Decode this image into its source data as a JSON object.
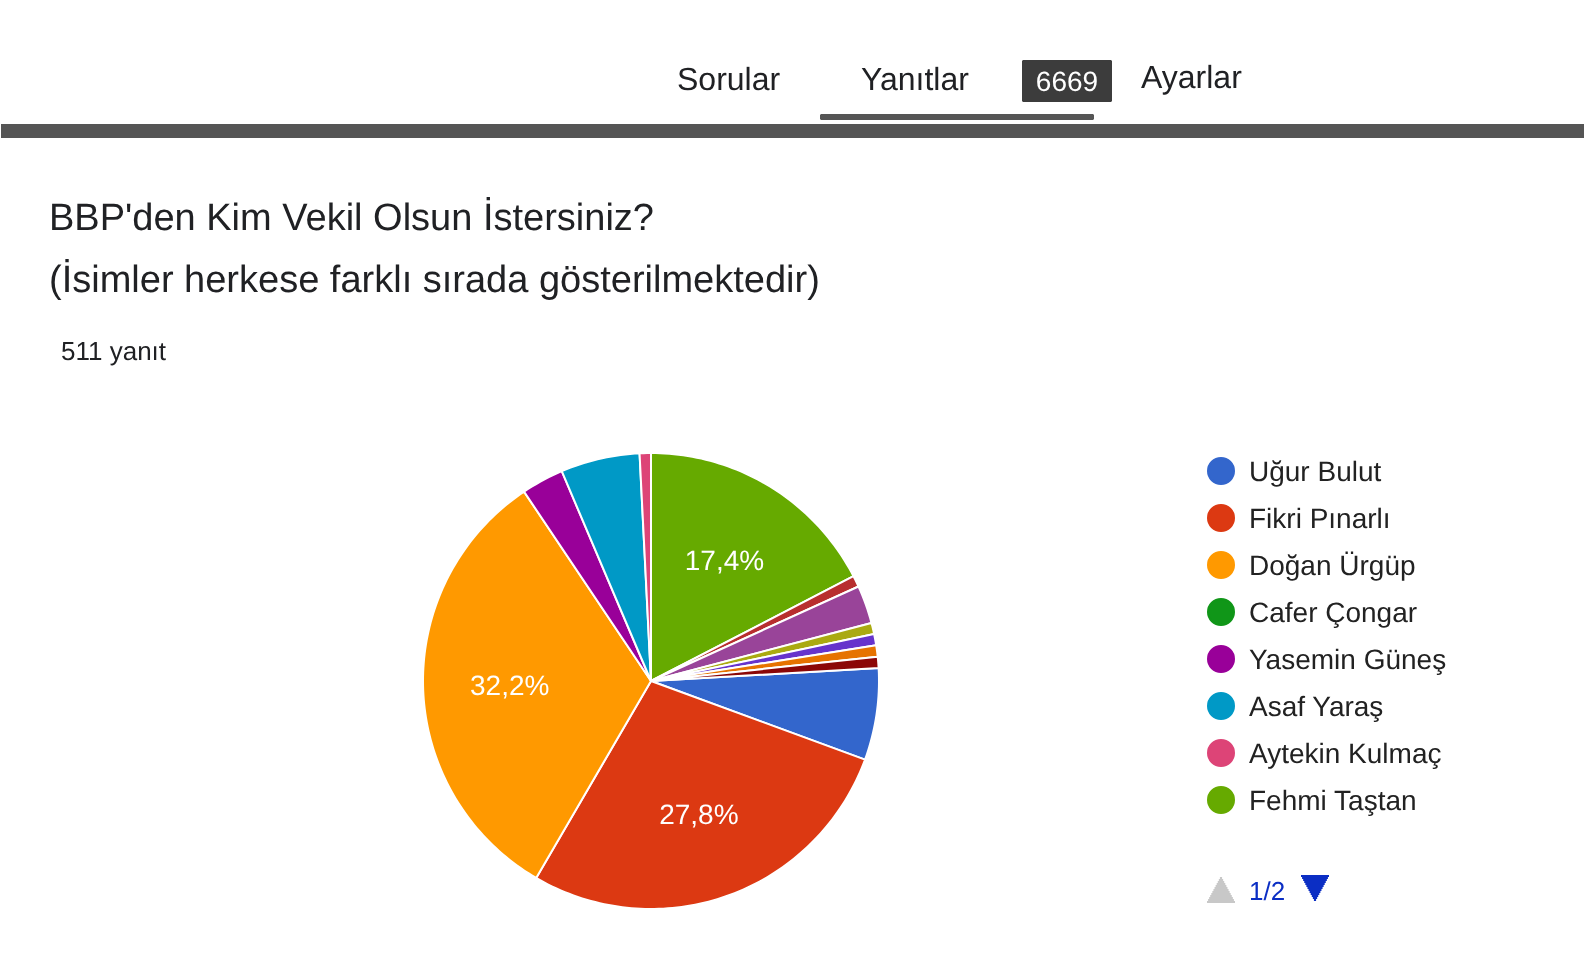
{
  "chart_data": {
    "type": "pie",
    "title": "BBP'den Kim Vekil Olsun İstersiniz?",
    "subtitle": "(İsimler herkese farklı sırada gösterilmektedir)",
    "categories": [
      "Uğur Bulut",
      "Fikri Pınarlı",
      "Doğan Ürgüp",
      "Cafer Çongar",
      "Yasemin Güneş",
      "Asaf Yaraş",
      "Aytekin Kulmaç",
      "Fehmi Taştan",
      null,
      null,
      null,
      null,
      null,
      null
    ],
    "values": [
      6.5,
      27.8,
      32.2,
      0,
      3.0,
      5.6,
      0.8,
      17.4,
      0.8,
      2.7,
      0.8,
      0.8,
      0.8,
      0.8
    ],
    "colors": [
      "#3366cc",
      "#dc3912",
      "#ff9900",
      "#109618",
      "#990099",
      "#0099c6",
      "#dd4477",
      "#66aa00",
      "#b82e2e",
      "#994499",
      "#aaaa11",
      "#6633cc",
      "#e67300",
      "#8b0707"
    ],
    "value_labels": [
      null,
      "27,8%",
      "32,2%",
      null,
      null,
      null,
      null,
      "17,4%",
      null,
      null,
      null,
      null,
      null,
      null
    ],
    "legend": "right",
    "annotations": [
      "Sorular",
      "Yanıtlar",
      "6669",
      "Ayarlar",
      "511 yanıt",
      "1/2"
    ]
  }
}
